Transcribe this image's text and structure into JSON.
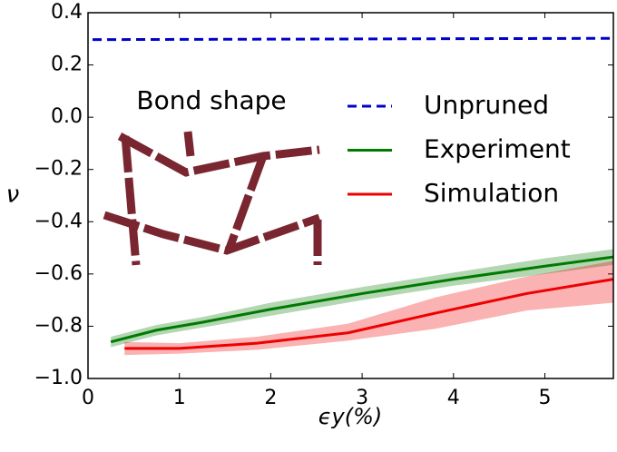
{
  "chart_data": {
    "type": "line",
    "xlabel": "ϵy(%)",
    "ylabel": "ν",
    "inset_title": "Bond shape",
    "xlim": [
      0,
      5.75
    ],
    "ylim": [
      -1.0,
      0.4
    ],
    "xticks": [
      0,
      1,
      2,
      3,
      4,
      5
    ],
    "yticks": [
      0.4,
      0.2,
      {
        "value": 0,
        "label": "0.0"
      },
      {
        "value": -0.2,
        "label": "−0.2"
      },
      {
        "value": -0.4,
        "label": "−0.4"
      },
      {
        "value": -0.6,
        "label": "−0.6"
      },
      {
        "value": -0.8,
        "label": "−0.8"
      },
      {
        "value": -1.0,
        "label": "−1.0"
      }
    ],
    "grid": false,
    "series": [
      {
        "name": "Unpruned",
        "color": "#0000cc",
        "linestyle": "dashed",
        "x": [
          0.05,
          5.75
        ],
        "values": [
          0.297,
          0.302
        ]
      },
      {
        "name": "Experiment",
        "color": "#007a00",
        "linestyle": "solid",
        "x": [
          0.25,
          0.75,
          1.25,
          2,
          3,
          4,
          5,
          5.75
        ],
        "values": [
          -0.86,
          -0.815,
          -0.785,
          -0.735,
          -0.675,
          -0.62,
          -0.57,
          -0.535
        ],
        "lower": [
          -0.88,
          -0.835,
          -0.805,
          -0.76,
          -0.7,
          -0.645,
          -0.6,
          -0.565
        ],
        "upper": [
          -0.84,
          -0.795,
          -0.765,
          -0.71,
          -0.65,
          -0.595,
          -0.54,
          -0.505
        ]
      },
      {
        "name": "Simulation",
        "color": "#ee0000",
        "linestyle": "solid",
        "x": [
          0.4,
          1,
          1.85,
          2.85,
          3.8,
          4.8,
          5.75
        ],
        "values": [
          -0.885,
          -0.885,
          -0.865,
          -0.825,
          -0.75,
          -0.675,
          -0.62
        ],
        "lower": [
          -0.91,
          -0.905,
          -0.89,
          -0.855,
          -0.81,
          -0.74,
          -0.71
        ],
        "upper": [
          -0.86,
          -0.865,
          -0.84,
          -0.79,
          -0.69,
          -0.61,
          -0.55
        ]
      }
    ]
  }
}
